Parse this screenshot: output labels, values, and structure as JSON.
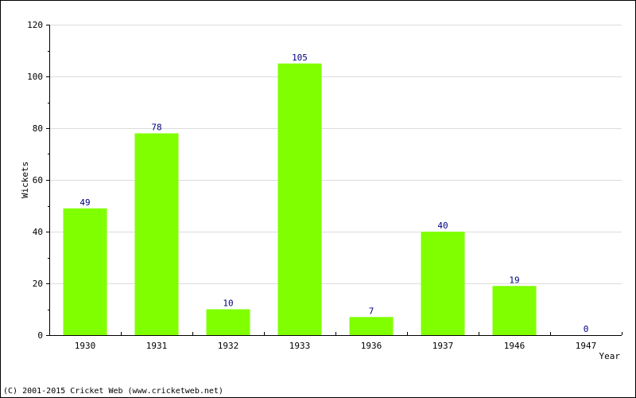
{
  "chart_data": {
    "type": "bar",
    "categories": [
      "1930",
      "1931",
      "1932",
      "1933",
      "1936",
      "1937",
      "1946",
      "1947"
    ],
    "values": [
      49,
      78,
      10,
      105,
      7,
      40,
      19,
      0
    ],
    "xlabel": "Year",
    "ylabel": "Wickets",
    "ylim": [
      0,
      120
    ],
    "yticks": [
      0,
      20,
      40,
      60,
      80,
      100,
      120
    ],
    "grid": true,
    "bar_color": "#80ff00",
    "label_color": "#000080"
  },
  "footer": {
    "copyright": "(C) 2001-2015 Cricket Web (www.cricketweb.net)"
  }
}
